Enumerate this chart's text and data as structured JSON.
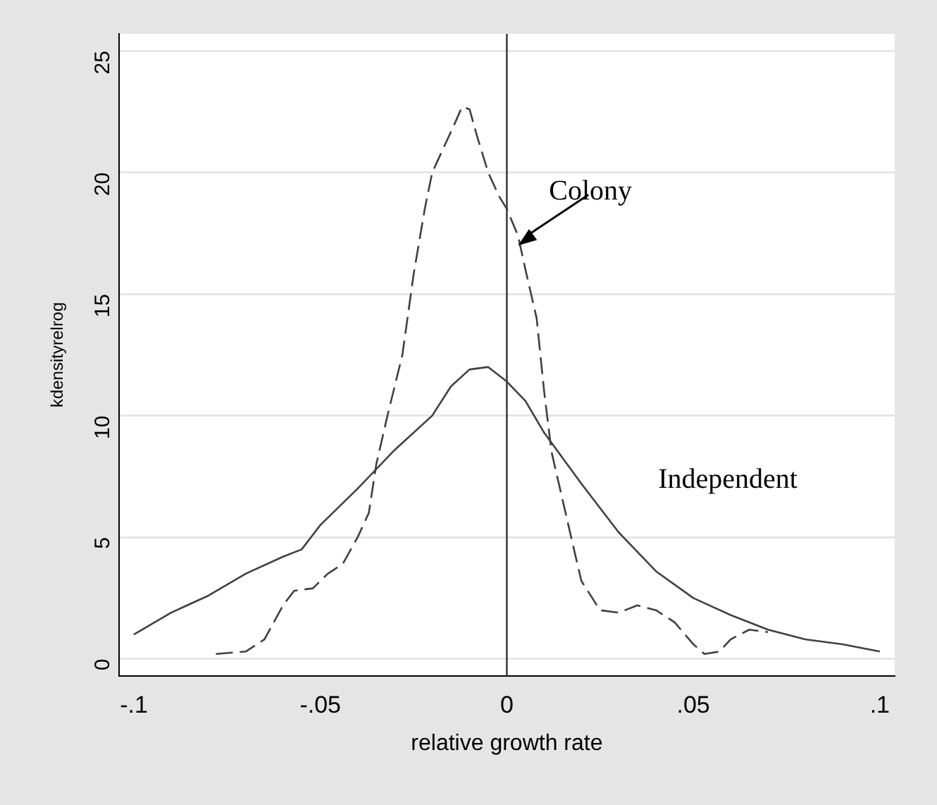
{
  "chart_data": {
    "type": "line",
    "xlabel": "relative growth rate",
    "ylabel": "kdensityrelrog",
    "xlim": [
      -0.104,
      0.104
    ],
    "ylim": [
      -0.7,
      25.7
    ],
    "xticks": [
      {
        "value": -0.1,
        "label": "-.1"
      },
      {
        "value": -0.05,
        "label": "-.05"
      },
      0,
      {
        "value": 0.05,
        "label": ".05"
      },
      {
        "value": 0.1,
        "label": ".1"
      }
    ],
    "yticks": [
      0,
      5,
      10,
      15,
      20,
      25
    ],
    "grid": "y",
    "marker": "none",
    "series": [
      {
        "color": "#404040",
        "line_style": "solid",
        "x": [
          -0.1,
          -0.09,
          -0.08,
          -0.07,
          -0.06,
          -0.055,
          -0.05,
          -0.04,
          -0.03,
          -0.02,
          -0.015,
          -0.01,
          -0.005,
          0,
          0.005,
          0.01,
          0.02,
          0.03,
          0.04,
          0.05,
          0.06,
          0.07,
          0.08,
          0.09,
          0.1
        ],
        "values": [
          1,
          1.9,
          2.6,
          3.5,
          4.2,
          4.5,
          5.5,
          7,
          8.6,
          10,
          11.2,
          11.9,
          12,
          11.4,
          10.6,
          9.3,
          7.2,
          5.2,
          3.6,
          2.5,
          1.8,
          1.2,
          0.8,
          0.6,
          0.3
        ]
      },
      {
        "color": "#404040",
        "line_style": "dashed",
        "x": [
          -0.078,
          -0.07,
          -0.065,
          -0.06,
          -0.057,
          -0.052,
          -0.048,
          -0.044,
          -0.04,
          -0.037,
          -0.035,
          -0.032,
          -0.028,
          -0.025,
          -0.022,
          -0.02,
          -0.017,
          -0.014,
          -0.012,
          -0.01,
          -0.008,
          -0.005,
          -0.002,
          0,
          0.003,
          0.005,
          0.008,
          0.01,
          0.012,
          0.015,
          0.018,
          0.02,
          0.025,
          0.03,
          0.035,
          0.04,
          0.045,
          0.05,
          0.053,
          0.057,
          0.06,
          0.065,
          0.07
        ],
        "values": [
          0.2,
          0.3,
          0.8,
          2.2,
          2.8,
          2.9,
          3.5,
          3.9,
          5,
          6,
          8,
          10,
          12.5,
          15.8,
          18.5,
          20,
          21,
          22,
          22.7,
          22.6,
          21.5,
          20,
          19,
          18.5,
          17.4,
          16,
          14,
          11,
          8.5,
          6.5,
          4.5,
          3.2,
          2,
          1.9,
          2.2,
          2,
          1.5,
          0.6,
          0.2,
          0.3,
          0.8,
          1.2,
          1.1
        ]
      }
    ],
    "ref_lines": [
      {
        "axis": "x",
        "value": 0,
        "color": "#404040"
      }
    ],
    "annotations": [
      {
        "text": "Colony",
        "x": 0.003,
        "y": 17
      },
      "Independent"
    ]
  }
}
